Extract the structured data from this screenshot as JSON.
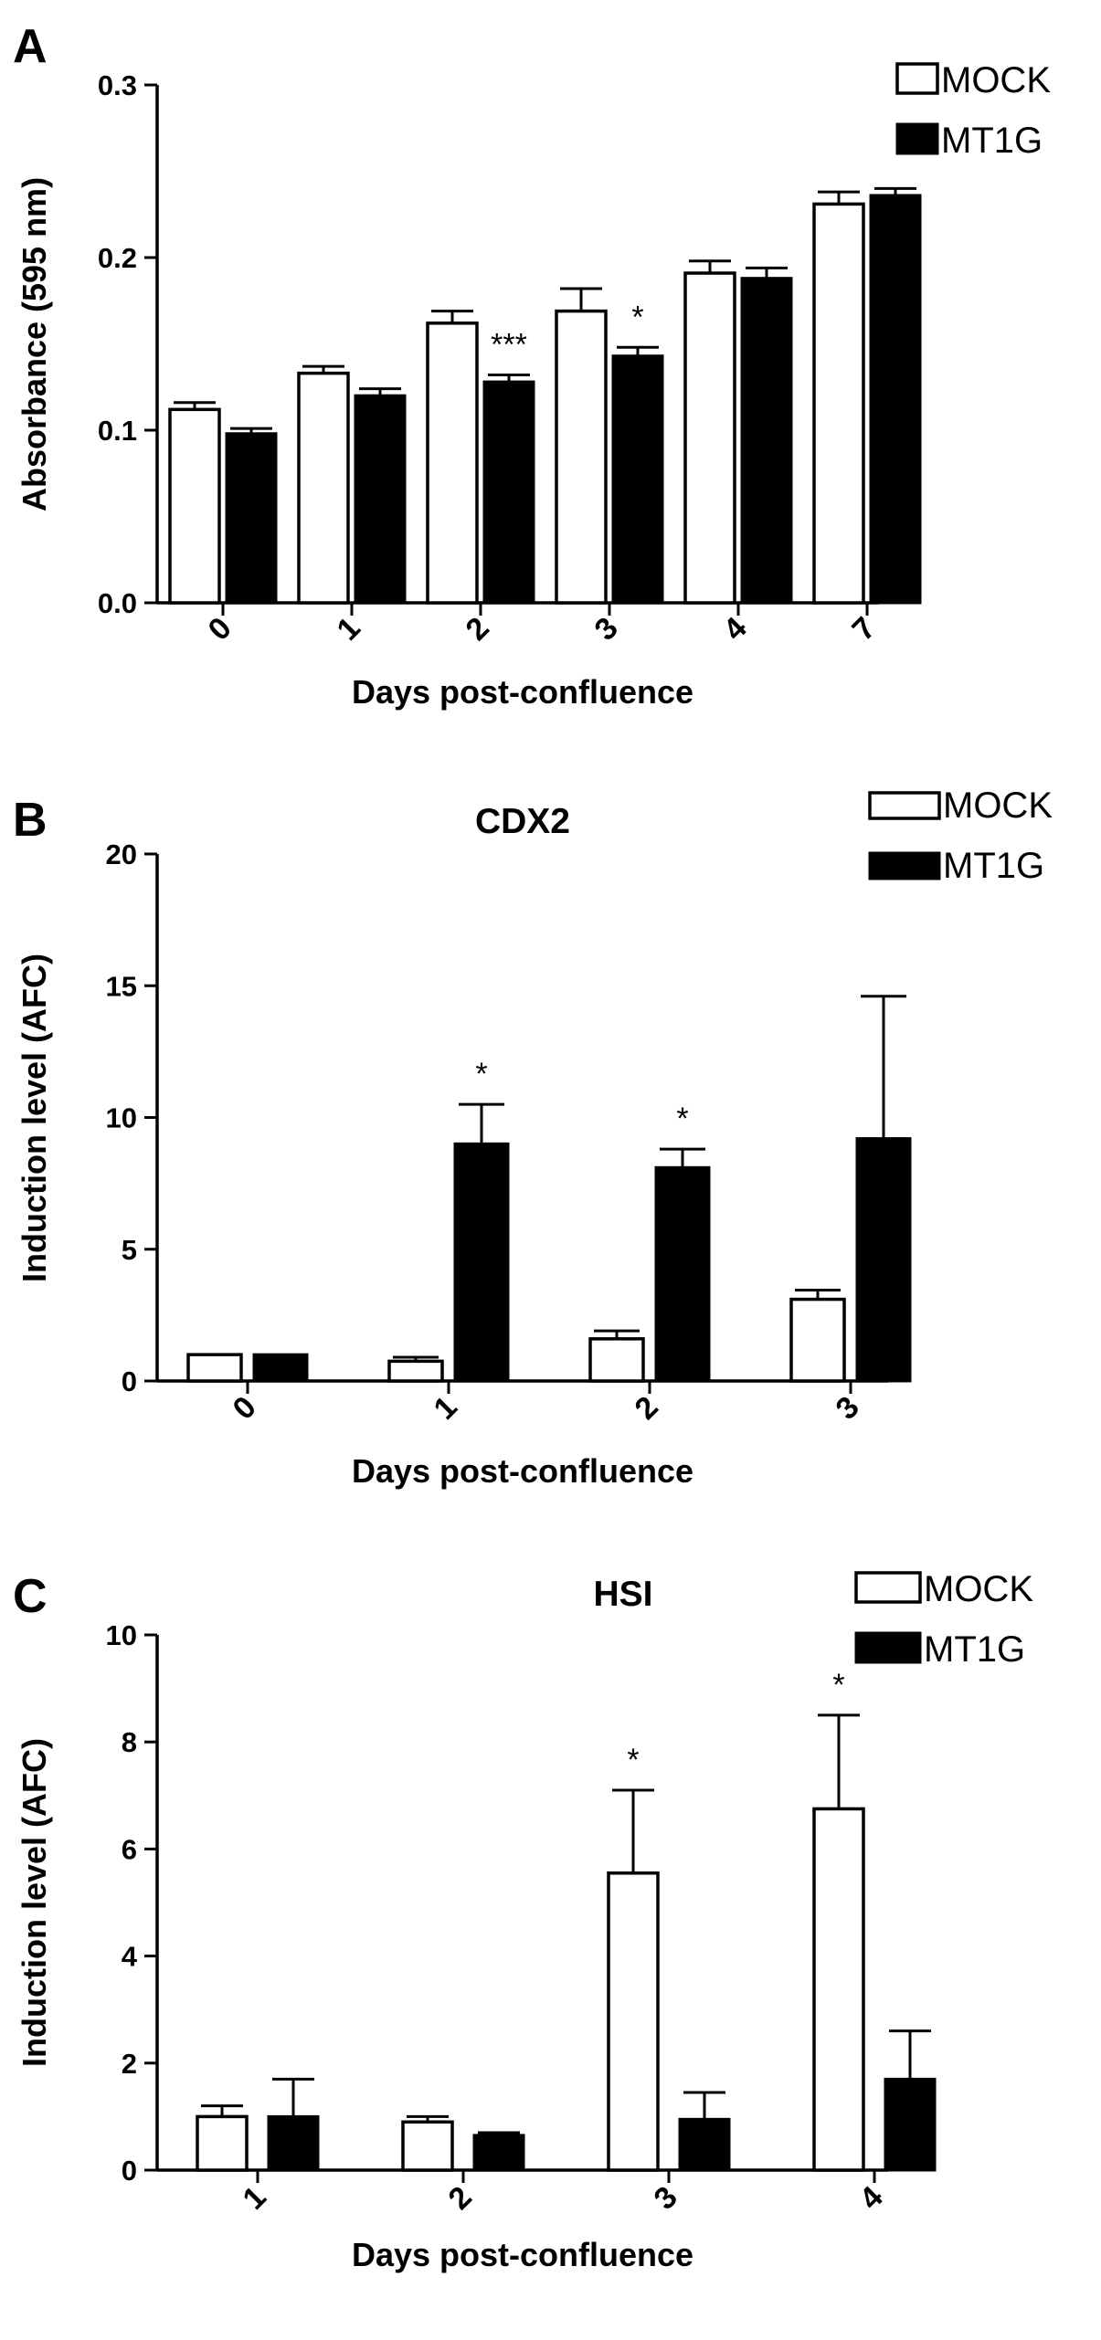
{
  "chart_data": [
    {
      "panel": "A",
      "type": "bar",
      "title": "",
      "xlabel": "Days post-confluence",
      "ylabel": "Absorbance (595 nm)",
      "ylim": [
        0,
        0.3
      ],
      "yticks": [
        "0.0",
        "0.1",
        "0.2",
        "0.3"
      ],
      "categories": [
        "0",
        "1",
        "2",
        "3",
        "4",
        "7"
      ],
      "legend_position": "top-right",
      "series": [
        {
          "name": "MOCK",
          "fill": "white",
          "values": [
            0.112,
            0.133,
            0.162,
            0.169,
            0.191,
            0.231
          ],
          "errors": [
            0.004,
            0.004,
            0.007,
            0.013,
            0.007,
            0.007
          ]
        },
        {
          "name": "MT1G",
          "fill": "black",
          "values": [
            0.098,
            0.12,
            0.128,
            0.143,
            0.188,
            0.236
          ],
          "errors": [
            0.003,
            0.004,
            0.004,
            0.005,
            0.006,
            0.004
          ]
        }
      ],
      "annotations": [
        {
          "category": "2",
          "series": "MT1G",
          "text": "***"
        },
        {
          "category": "3",
          "series": "MT1G",
          "text": "*"
        }
      ]
    },
    {
      "panel": "B",
      "type": "bar",
      "title": "CDX2",
      "xlabel": "Days post-confluence",
      "ylabel": "Induction level (AFC)",
      "ylim": [
        0,
        20
      ],
      "yticks": [
        "0",
        "5",
        "10",
        "15",
        "20"
      ],
      "categories": [
        "0",
        "1",
        "2",
        "3"
      ],
      "legend_position": "top-right",
      "series": [
        {
          "name": "MOCK",
          "fill": "white",
          "values": [
            1.0,
            0.75,
            1.6,
            3.1
          ],
          "errors": [
            0.0,
            0.15,
            0.3,
            0.35
          ]
        },
        {
          "name": "MT1G",
          "fill": "black",
          "values": [
            1.0,
            9.0,
            8.1,
            9.2
          ],
          "errors": [
            0.0,
            1.5,
            0.7,
            5.4
          ]
        }
      ],
      "annotations": [
        {
          "category": "1",
          "series": "MT1G",
          "text": "*"
        },
        {
          "category": "2",
          "series": "MT1G",
          "text": "*"
        }
      ]
    },
    {
      "panel": "C",
      "type": "bar",
      "title": "HSI",
      "xlabel": "Days post-confluence",
      "ylabel": "Induction level (AFC)",
      "ylim": [
        0,
        10
      ],
      "yticks": [
        "0",
        "2",
        "4",
        "6",
        "8",
        "10"
      ],
      "categories": [
        "1",
        "2",
        "3",
        "4"
      ],
      "legend_position": "top-right",
      "series": [
        {
          "name": "MOCK",
          "fill": "white",
          "values": [
            1.0,
            0.9,
            5.55,
            6.75
          ],
          "errors": [
            0.2,
            0.1,
            1.55,
            1.75
          ]
        },
        {
          "name": "MT1G",
          "fill": "black",
          "values": [
            1.0,
            0.65,
            0.95,
            1.7
          ],
          "errors": [
            0.7,
            0.05,
            0.5,
            0.9
          ]
        }
      ],
      "annotations": [
        {
          "category": "3",
          "series": "MOCK",
          "text": "*"
        },
        {
          "category": "4",
          "series": "MOCK",
          "text": "*"
        }
      ]
    }
  ]
}
